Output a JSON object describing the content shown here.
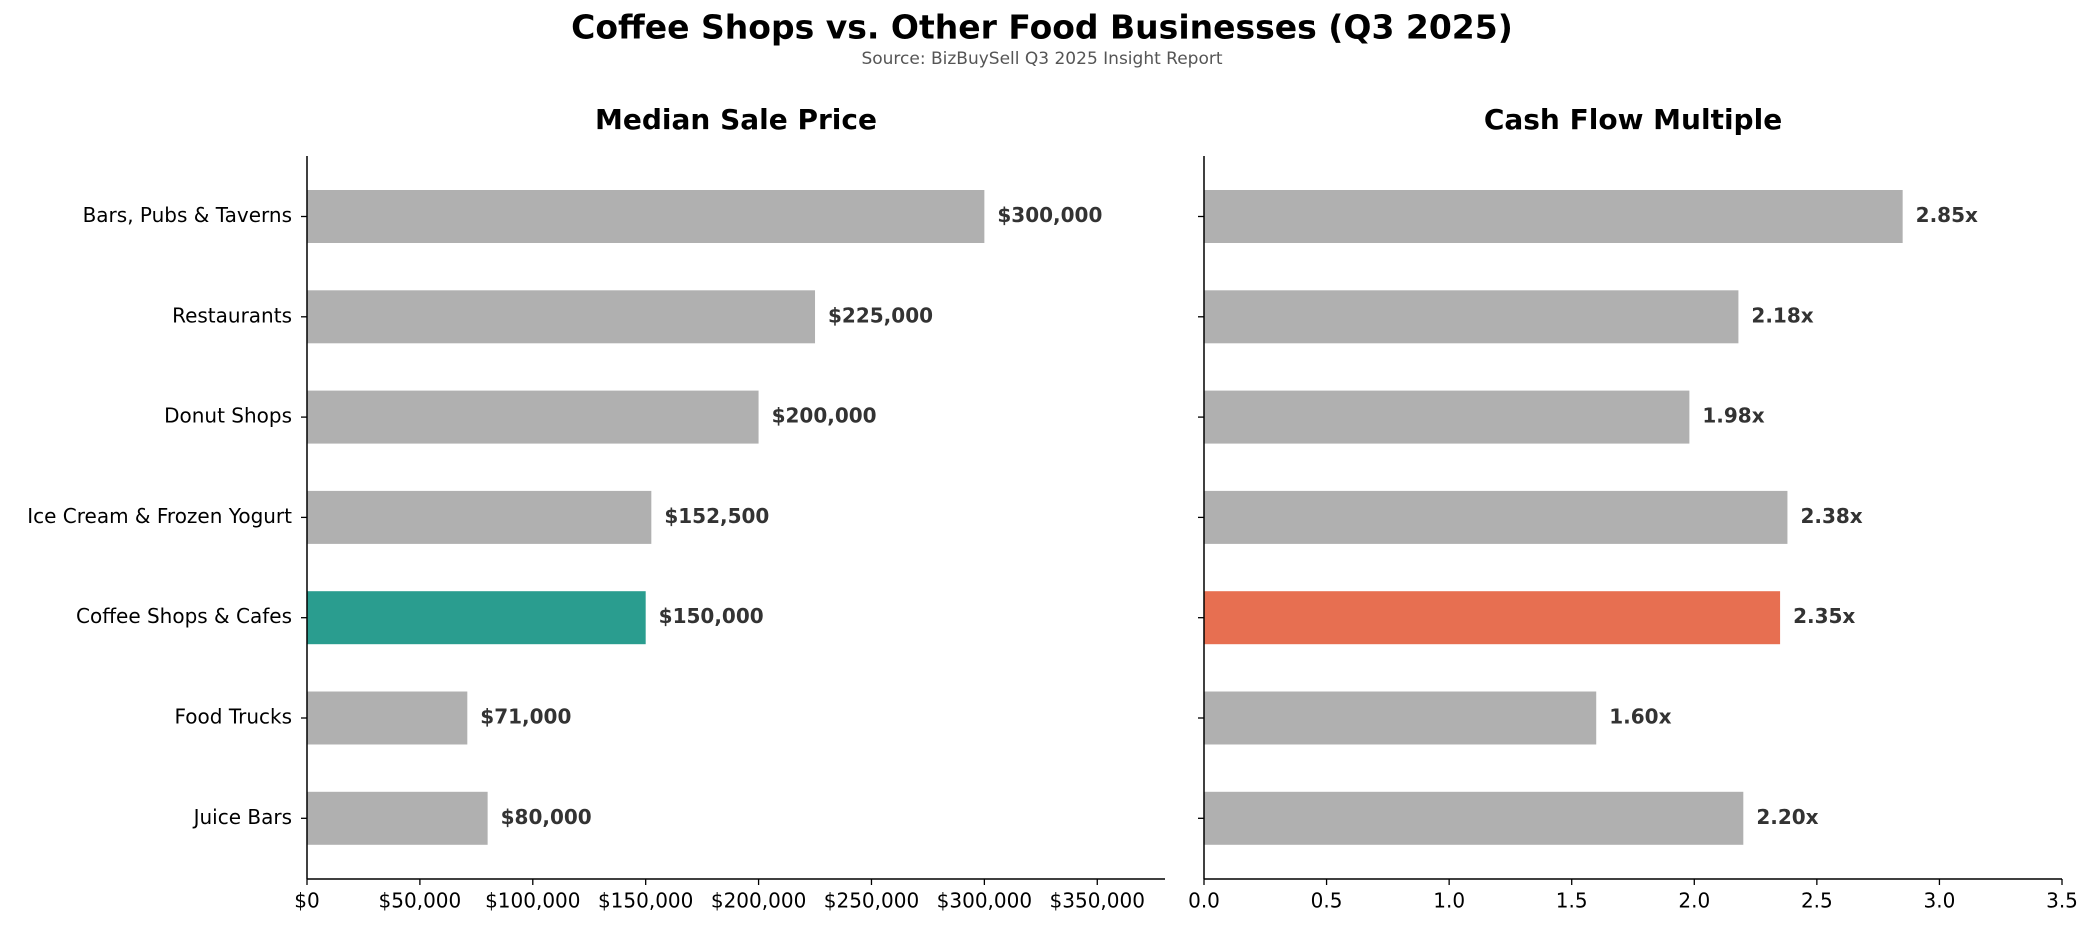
{
  "title": "Coffee Shops vs. Other Food Businesses (Q3 2025)",
  "subtitle": "Source: BizBuySell Q3 2025 Insight Report",
  "chart_data": [
    {
      "type": "bar",
      "orientation": "horizontal",
      "title": "Median Sale Price",
      "categories": [
        "Bars, Pubs & Taverns",
        "Restaurants",
        "Donut Shops",
        "Ice Cream & Frozen Yogurt",
        "Coffee Shops & Cafes",
        "Food Trucks",
        "Juice Bars"
      ],
      "values": [
        300000,
        225000,
        200000,
        152500,
        150000,
        71000,
        80000
      ],
      "value_labels": [
        "$300,000",
        "$225,000",
        "$200,000",
        "$152,500",
        "$150,000",
        "$71,000",
        "$80,000"
      ],
      "colors": [
        "#b0b0b0",
        "#b0b0b0",
        "#b0b0b0",
        "#b0b0b0",
        "#2a9d8f",
        "#b0b0b0",
        "#b0b0b0"
      ],
      "xlim": [
        0,
        380000
      ],
      "xticks": [
        {
          "value": 0,
          "label": "$0"
        },
        {
          "value": 50000,
          "label": "$50,000"
        },
        {
          "value": 100000,
          "label": "$100,000"
        },
        {
          "value": 150000,
          "label": "$150,000"
        },
        {
          "value": 200000,
          "label": "$200,000"
        },
        {
          "value": 250000,
          "label": "$250,000"
        },
        {
          "value": 300000,
          "label": "$300,000"
        },
        {
          "value": 350000,
          "label": "$350,000"
        }
      ]
    },
    {
      "type": "bar",
      "orientation": "horizontal",
      "title": "Cash Flow Multiple",
      "values": [
        2.85,
        2.18,
        1.98,
        2.38,
        2.35,
        1.6,
        2.2
      ],
      "value_labels": [
        "2.85x",
        "2.18x",
        "1.98x",
        "2.38x",
        "2.35x",
        "1.60x",
        "2.20x"
      ],
      "colors": [
        "#b0b0b0",
        "#b0b0b0",
        "#b0b0b0",
        "#b0b0b0",
        "#e76f51",
        "#b0b0b0",
        "#b0b0b0"
      ],
      "xlim": [
        0,
        3.5
      ],
      "xticks": [
        {
          "value": 0,
          "label": "0.0"
        },
        0.5,
        {
          "value": 1,
          "label": "1.0"
        },
        1.5,
        {
          "value": 2,
          "label": "2.0"
        },
        2.5,
        {
          "value": 3,
          "label": "3.0"
        },
        3.5
      ]
    }
  ]
}
